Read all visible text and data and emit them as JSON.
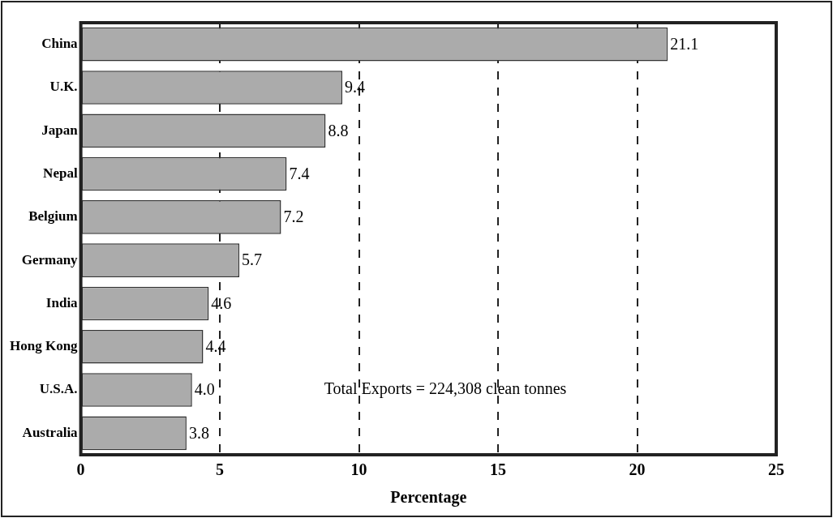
{
  "chart_data": {
    "type": "bar",
    "orientation": "horizontal",
    "xlabel": "Percentage",
    "categories": [
      "China",
      "U.K.",
      "Japan",
      "Nepal",
      "Belgium",
      "Germany",
      "India",
      "Hong Kong",
      "U.S.A.",
      "Australia"
    ],
    "values": [
      21.1,
      9.4,
      8.8,
      7.4,
      7.2,
      5.7,
      4.6,
      4.4,
      4.0,
      3.8
    ],
    "value_labels": [
      "21.1",
      "9.4",
      "8.8",
      "7.4",
      "7.2",
      "5.7",
      "4.6",
      "4.4",
      "4.0",
      "3.8"
    ],
    "color": "#ababab",
    "xlim": [
      0,
      25
    ],
    "xticks": [
      0,
      5,
      10,
      15,
      20,
      25
    ],
    "grid": "x",
    "annotations": [
      "Total Exports = 224,308 clean tonnes"
    ]
  }
}
